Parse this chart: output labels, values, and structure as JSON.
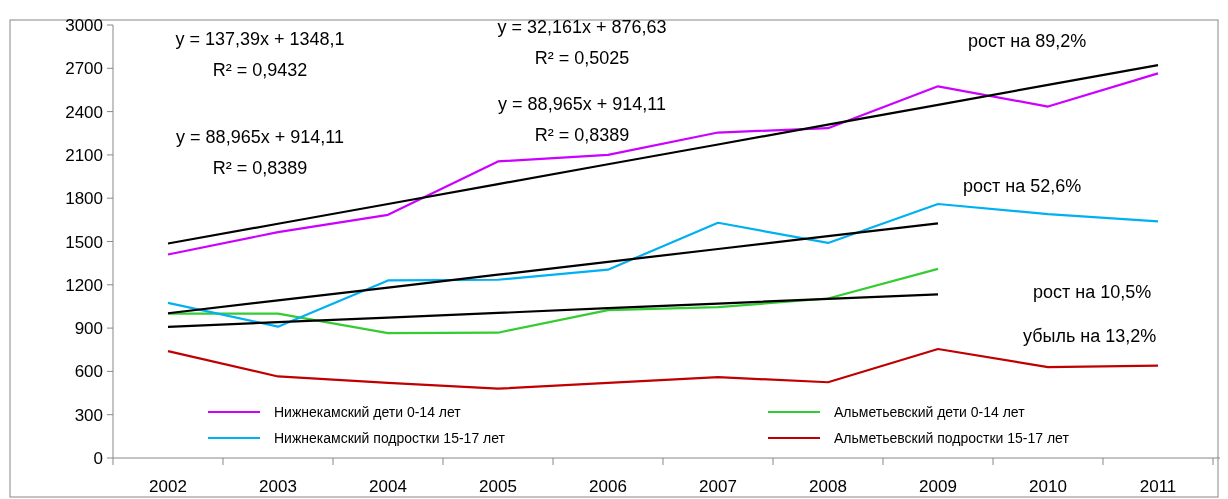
{
  "chart_data": {
    "type": "line",
    "categories": [
      "2002",
      "2003",
      "2004",
      "2005",
      "2006",
      "2007",
      "2008",
      "2009",
      "2010",
      "2011"
    ],
    "ylim": [
      0,
      3000
    ],
    "yticks": [
      0,
      300,
      600,
      900,
      1200,
      1500,
      1800,
      2100,
      2400,
      2700,
      3000
    ],
    "grid": false,
    "legend": "bottom",
    "marker": "none",
    "line_style": "solid",
    "series": [
      {
        "name": "Нижнекамский дети 0-14 лет",
        "color": "#cc00ff",
        "values": [
          1410,
          1565,
          1685,
          2055,
          2100,
          2255,
          2285,
          2575,
          2435,
          2665
        ]
      },
      {
        "name": "Альметьевский дети 0-14 лет",
        "color": "#33cc33",
        "values": [
          1000,
          1000,
          865,
          868,
          1025,
          1045,
          1105,
          1310,
          null,
          null
        ]
      },
      {
        "name": "Нижнекамский подростки 15-17 лет",
        "color": "#00b0f0",
        "values": [
          1075,
          910,
          1230,
          1235,
          1305,
          1630,
          1490,
          1760,
          1690,
          1640
        ]
      },
      {
        "name": "Альметьевский подростки 15-17 лет",
        "color": "#c00000",
        "values": [
          740,
          565,
          520,
          480,
          520,
          560,
          525,
          755,
          630,
          640
        ]
      },
      {
        "type": "line",
        "color": "#000000",
        "values": [
          1486,
          1623,
          1760,
          1898,
          2035,
          2172,
          2310,
          2447,
          2585,
          2722
        ]
      },
      {
        "type": "line",
        "color": "#000000",
        "values": [
          1003,
          1092,
          1181,
          1270,
          1359,
          1448,
          1537,
          1626,
          null,
          null
        ]
      },
      {
        "type": "line",
        "color": "#000000",
        "values": [
          909,
          941,
          973,
          1005,
          1038,
          1070,
          1102,
          1134,
          null,
          null
        ]
      }
    ],
    "annotations": [
      "y = 137,39x + 1348,1",
      "R² = 0,9432",
      "y = 88,965x + 914,11",
      "R² = 0,8389",
      "y = 32,161x + 876,63",
      "R² = 0,5025",
      "y = 88,965x + 914,11",
      "R² = 0,8389",
      "рост  на 89,2%",
      "рост на 52,6%",
      "рост  на 10,5%",
      "убыль на 13,2%"
    ]
  }
}
